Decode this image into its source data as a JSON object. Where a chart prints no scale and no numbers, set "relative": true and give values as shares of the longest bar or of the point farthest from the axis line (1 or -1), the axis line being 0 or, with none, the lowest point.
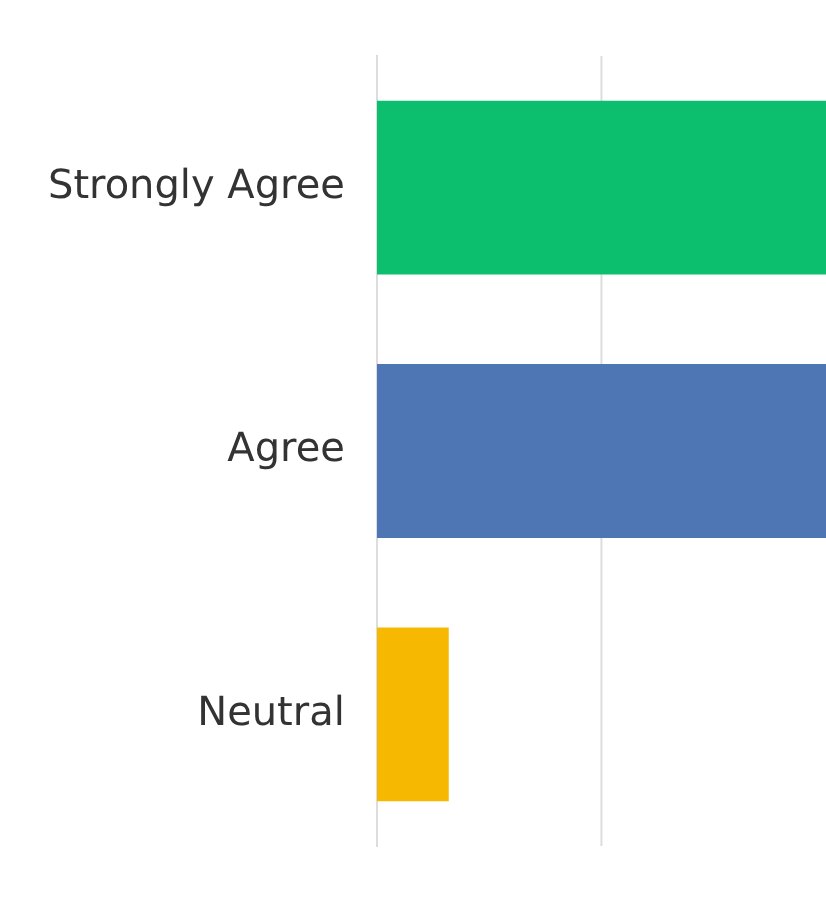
{
  "chart_data": {
    "type": "bar",
    "orientation": "horizontal",
    "relative": true,
    "categories": [
      "Strongly Agree",
      "Agree",
      "Neutral"
    ],
    "values": [
      1,
      1,
      0.16
    ],
    "colors": [
      "#0bbf6f",
      "#4f76b4",
      "#f6b800"
    ],
    "ref_lines": [
      {
        "axis": "x",
        "value": 0.5,
        "color": "#dddddd"
      }
    ],
    "legend": false
  }
}
